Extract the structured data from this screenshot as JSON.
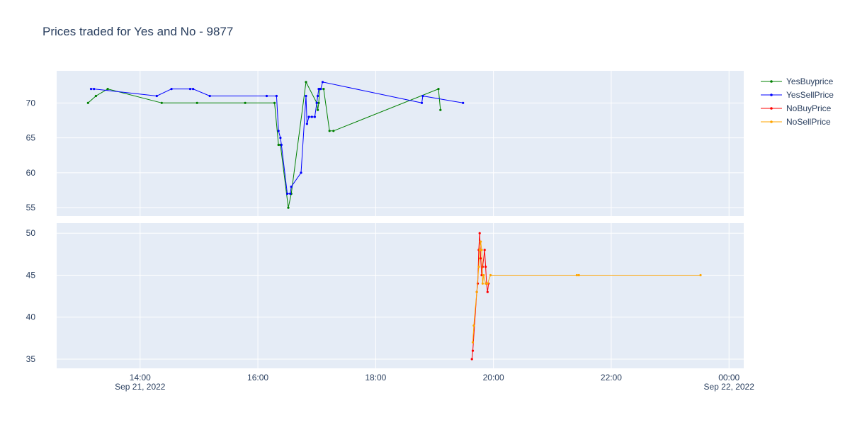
{
  "chart_data": {
    "type": "line",
    "title": "Prices traded for Yes and No - 9877",
    "x_axis": {
      "type": "date",
      "range": [
        "2022-09-21 12:35",
        "2022-09-22 00:15"
      ],
      "ticks": [
        {
          "t": "2022-09-21 14:00",
          "label": "14:00",
          "sublabel": "Sep 21, 2022"
        },
        {
          "t": "2022-09-21 16:00",
          "label": "16:00",
          "sublabel": ""
        },
        {
          "t": "2022-09-21 18:00",
          "label": "18:00",
          "sublabel": ""
        },
        {
          "t": "2022-09-21 20:00",
          "label": "20:00",
          "sublabel": ""
        },
        {
          "t": "2022-09-21 22:00",
          "label": "22:00",
          "sublabel": ""
        },
        {
          "t": "2022-09-22 00:00",
          "label": "00:00",
          "sublabel": "Sep 22, 2022"
        }
      ]
    },
    "subplots": [
      {
        "name": "top",
        "ylim": [
          53.8,
          74.6
        ],
        "yticks": [
          55,
          60,
          65,
          70
        ],
        "series": [
          {
            "name": "YesBuyprice",
            "color": "#008000",
            "x": [
              "2022-09-21 13:07",
              "2022-09-21 13:15",
              "2022-09-21 13:27",
              "2022-09-21 14:22",
              "2022-09-21 14:58",
              "2022-09-21 15:47",
              "2022-09-21 16:17",
              "2022-09-21 16:21",
              "2022-09-21 16:23",
              "2022-09-21 16:31",
              "2022-09-21 16:34",
              "2022-09-21 16:49",
              "2022-09-21 17:00",
              "2022-09-21 17:01",
              "2022-09-21 17:02",
              "2022-09-21 17:03",
              "2022-09-21 17:07",
              "2022-09-21 17:13",
              "2022-09-21 17:17",
              "2022-09-21 19:04",
              "2022-09-21 19:06"
            ],
            "y": [
              70,
              71,
              72,
              70,
              70,
              70,
              70,
              64,
              64,
              55,
              57,
              73,
              70,
              69,
              70,
              72,
              72,
              66,
              66,
              72,
              69
            ]
          },
          {
            "name": "YesSellPrice",
            "color": "#0000ff",
            "x": [
              "2022-09-21 13:10",
              "2022-09-21 13:13",
              "2022-09-21 14:17",
              "2022-09-21 14:32",
              "2022-09-21 14:51",
              "2022-09-21 14:54",
              "2022-09-21 15:11",
              "2022-09-21 16:09",
              "2022-09-21 16:19",
              "2022-09-21 16:21",
              "2022-09-21 16:23",
              "2022-09-21 16:24",
              "2022-09-21 16:30",
              "2022-09-21 16:33",
              "2022-09-21 16:34",
              "2022-09-21 16:44",
              "2022-09-21 16:49",
              "2022-09-21 16:50",
              "2022-09-21 16:52",
              "2022-09-21 16:55",
              "2022-09-21 16:58",
              "2022-09-21 17:00",
              "2022-09-21 17:01",
              "2022-09-21 17:02",
              "2022-09-21 17:04",
              "2022-09-21 17:06",
              "2022-09-21 18:47",
              "2022-09-21 18:48",
              "2022-09-21 19:29"
            ],
            "y": [
              72,
              72,
              71,
              72,
              72,
              72,
              71,
              71,
              71,
              66,
              65,
              64,
              57,
              57,
              58,
              60,
              71,
              67,
              68,
              68,
              68,
              70,
              71,
              72,
              72,
              73,
              70,
              71,
              70
            ]
          }
        ]
      },
      {
        "name": "bottom",
        "ylim": [
          33.9,
          51.2
        ],
        "yticks": [
          35,
          40,
          45,
          50
        ],
        "series": [
          {
            "name": "NoBuyPrice",
            "color": "#ff0000",
            "x": [
              "2022-09-21 19:38",
              "2022-09-21 19:39",
              "2022-09-21 19:43",
              "2022-09-21 19:44",
              "2022-09-21 19:45",
              "2022-09-21 19:46",
              "2022-09-21 19:47",
              "2022-09-21 19:48",
              "2022-09-21 19:49",
              "2022-09-21 19:51",
              "2022-09-21 19:52",
              "2022-09-21 19:53",
              "2022-09-21 19:54",
              "2022-09-21 19:55"
            ],
            "y": [
              35,
              36,
              43,
              44,
              48,
              50,
              47,
              45,
              46,
              48,
              46,
              44,
              43,
              44
            ]
          },
          {
            "name": "NoSellPrice",
            "color": "#ffa500",
            "x": [
              "2022-09-21 19:39",
              "2022-09-21 19:40",
              "2022-09-21 19:43",
              "2022-09-21 19:45",
              "2022-09-21 19:46",
              "2022-09-21 19:47",
              "2022-09-21 19:48",
              "2022-09-21 19:49",
              "2022-09-21 19:50",
              "2022-09-21 19:52",
              "2022-09-21 19:54",
              "2022-09-21 19:57",
              "2022-09-21 21:25",
              "2022-09-21 21:27",
              "2022-09-21 23:31"
            ],
            "y": [
              37,
              39,
              43,
              46,
              48,
              49,
              48,
              44,
              45,
              44,
              44,
              45,
              45,
              45,
              45
            ]
          }
        ]
      }
    ],
    "legend": {
      "position": "top-right",
      "entries": [
        "YesBuyprice",
        "YesSellPrice",
        "NoBuyPrice",
        "NoSellPrice"
      ]
    },
    "colors": {
      "plot_bg": "#e5ecf6",
      "grid": "#ffffff",
      "text": "#2a3f5f"
    },
    "grid": true
  }
}
